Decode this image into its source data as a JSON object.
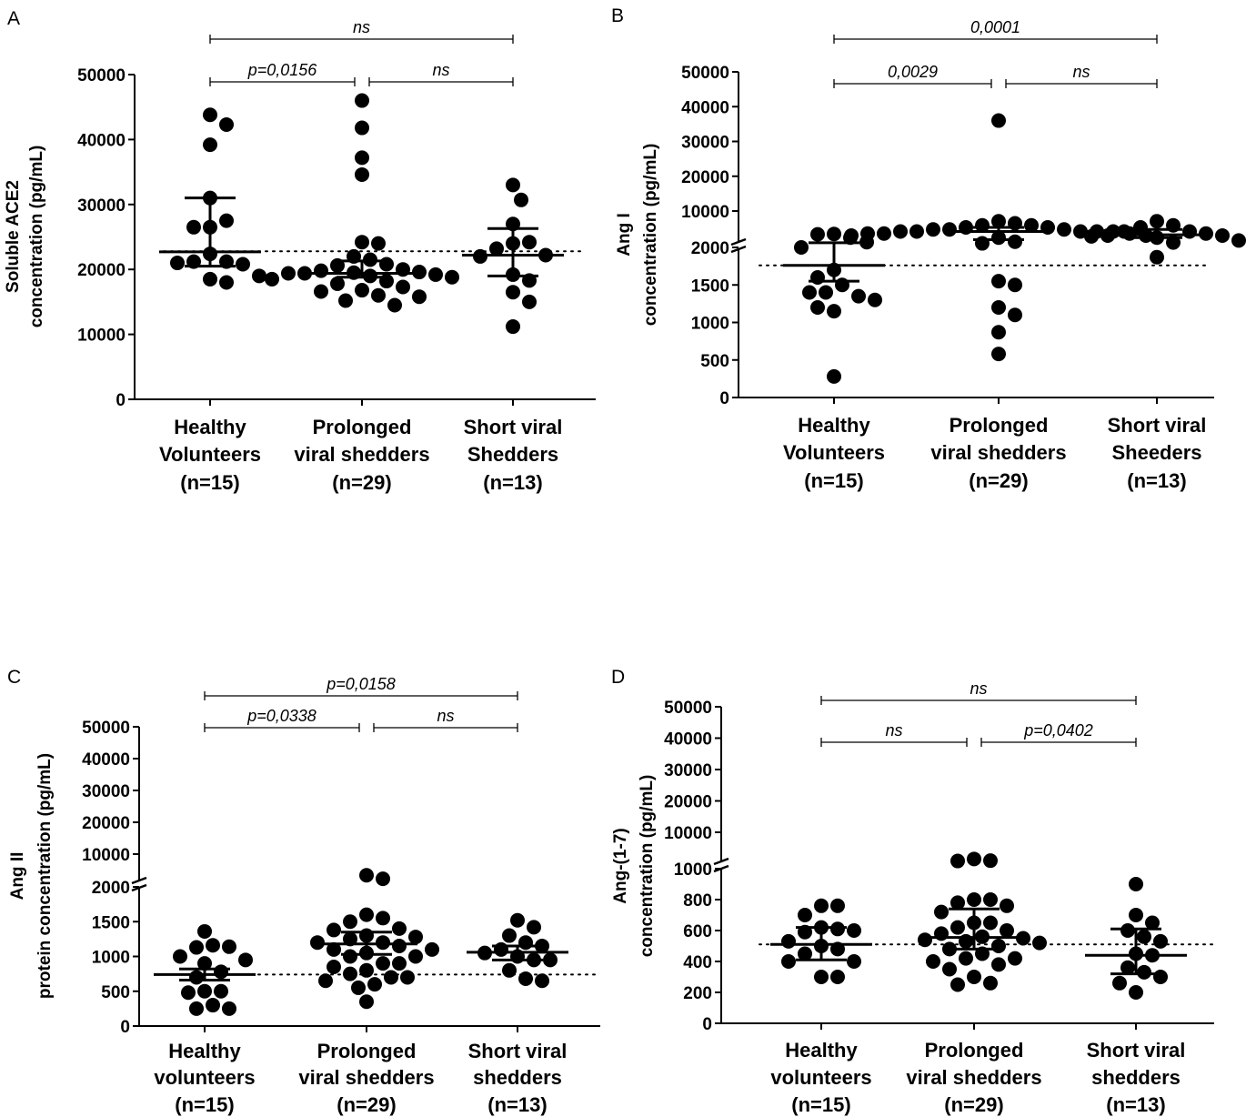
{
  "chart_data": [
    {
      "type": "scatter",
      "panel": "A",
      "ylabel": [
        "Soluble ACE2",
        "concentration (pg/mL)"
      ],
      "ylim": [
        0,
        50000
      ],
      "yticks": [
        "0",
        "10000",
        "20000",
        "30000",
        "40000",
        "50000"
      ],
      "categories": [
        {
          "lines": [
            "Healthy",
            "Volunteers",
            "(n=15)"
          ]
        },
        {
          "lines": [
            "Prolonged",
            "viral shedders",
            "(n=29)"
          ]
        },
        {
          "lines": [
            "Short viral",
            "Shedders",
            "(n=13)"
          ]
        }
      ],
      "reference_line": 22800,
      "series": [
        {
          "name": "Healthy Volunteers",
          "median": 22700,
          "q1": 20500,
          "q3": 31000,
          "values": [
            43800,
            42300,
            39200,
            31000,
            26500,
            27500,
            26500,
            22400,
            21200,
            21200,
            20800,
            21000,
            18500,
            18000,
            19000
          ]
        },
        {
          "name": "Prolonged viral shedders",
          "median": 19400,
          "q1": 18800,
          "q3": 21300,
          "values": [
            46000,
            41800,
            37200,
            34600,
            24200,
            24000,
            22000,
            21500,
            20800,
            20600,
            20000,
            19800,
            19500,
            19600,
            19400,
            19200,
            19400,
            19000,
            18800,
            18500,
            18200,
            17800,
            17300,
            16800,
            16600,
            16000,
            15800,
            15200,
            14500
          ]
        },
        {
          "name": "Short viral Shedders",
          "median": 22200,
          "q1": 19000,
          "q3": 26300,
          "values": [
            33000,
            30700,
            27000,
            24000,
            24200,
            23200,
            22200,
            22000,
            19200,
            18300,
            16500,
            15000,
            11200
          ]
        }
      ],
      "comparisons": [
        {
          "from": 0,
          "to": 1,
          "label": "p=0,0156",
          "level": 1
        },
        {
          "from": 1,
          "to": 2,
          "label": "ns",
          "level": 1
        },
        {
          "from": 0,
          "to": 2,
          "label": "ns",
          "level": 2
        }
      ]
    },
    {
      "type": "scatter",
      "panel": "B",
      "ylabel": [
        "Ang I",
        "concentration (pg/mL)"
      ],
      "ylim": [
        0,
        50000
      ],
      "axis_break": 2000,
      "yticks": [
        "0",
        "500",
        "1000",
        "1500",
        "2000",
        "10000",
        "20000",
        "30000",
        "40000",
        "50000"
      ],
      "categories": [
        {
          "lines": [
            "Healthy",
            "Volunteers",
            "(n=15)"
          ]
        },
        {
          "lines": [
            "Prolonged",
            "viral shedders",
            "(n=29)"
          ]
        },
        {
          "lines": [
            "Short viral",
            "Sheeders",
            "(n=13)"
          ]
        }
      ],
      "reference_line": 1760,
      "series": [
        {
          "name": "Healthy Volunteers",
          "median": 1760,
          "q1": 1550,
          "q3": 2250,
          "values": [
            4400,
            3500,
            4300,
            2400,
            2000,
            1700,
            1500,
            1400,
            1600,
            1350,
            1400,
            1300,
            1150,
            1200,
            280
          ]
        },
        {
          "name": "Prolonged viral shedders",
          "median": 5000,
          "q1": 3000,
          "q3": 6000,
          "values": [
            36000,
            7500,
            7000,
            6500,
            6500,
            6000,
            6000,
            5500,
            5500,
            5500,
            5000,
            5000,
            5000,
            5000,
            5000,
            4500,
            4500,
            4500,
            4000,
            4000,
            3500,
            2500,
            2100,
            1550,
            1500,
            1200,
            1100,
            870,
            580
          ]
        },
        {
          "name": "Short viral Sheeders",
          "median": 4200,
          "q1": 3500,
          "q3": 5500,
          "values": [
            7500,
            6500,
            6000,
            5000,
            5000,
            4500,
            4000,
            4000,
            3800,
            3500,
            2800,
            2300,
            1870
          ]
        }
      ],
      "comparisons": [
        {
          "from": 0,
          "to": 1,
          "label": "0,0029",
          "level": 1
        },
        {
          "from": 1,
          "to": 2,
          "label": "ns",
          "level": 1
        },
        {
          "from": 0,
          "to": 2,
          "label": "0,0001",
          "level": 2
        }
      ]
    },
    {
      "type": "scatter",
      "panel": "C",
      "ylabel": [
        "Ang II",
        "protein concentration (pg/mL)"
      ],
      "ylim": [
        0,
        50000
      ],
      "axis_break": 2000,
      "yticks": [
        "0",
        "500",
        "1000",
        "1500",
        "2000",
        "10000",
        "20000",
        "30000",
        "40000",
        "50000"
      ],
      "categories": [
        {
          "lines": [
            "Healthy",
            "volunteers",
            "(n=15)"
          ]
        },
        {
          "lines": [
            "Prolonged",
            "viral shedders",
            "(n=29)"
          ]
        },
        {
          "lines": [
            "Short viral",
            "shedders",
            "(n=13)"
          ]
        }
      ],
      "reference_line": 740,
      "series": [
        {
          "name": "Healthy volunteers",
          "median": 740,
          "q1": 660,
          "q3": 820,
          "values": [
            1360,
            1160,
            1130,
            1140,
            1000,
            950,
            900,
            780,
            700,
            500,
            500,
            480,
            300,
            250,
            250
          ]
        },
        {
          "name": "Prolonged viral shedders",
          "median": 1180,
          "q1": 1030,
          "q3": 1350,
          "values": [
            4000,
            3000,
            1600,
            1550,
            1500,
            1400,
            1380,
            1300,
            1200,
            1250,
            1280,
            1200,
            1150,
            1100,
            1100,
            1050,
            1000,
            1000,
            900,
            900,
            850,
            800,
            750,
            700,
            700,
            650,
            600,
            550,
            350
          ]
        },
        {
          "name": "Short viral shedders",
          "median": 1060,
          "q1": 950,
          "q3": 1150,
          "values": [
            1520,
            1420,
            1300,
            1200,
            1150,
            1100,
            1050,
            1000,
            950,
            950,
            800,
            680,
            650
          ]
        }
      ],
      "comparisons": [
        {
          "from": 0,
          "to": 1,
          "label": "p=0,0338",
          "level": 1
        },
        {
          "from": 1,
          "to": 2,
          "label": "ns",
          "level": 1
        },
        {
          "from": 0,
          "to": 2,
          "label": "p=0,0158",
          "level": 2
        }
      ]
    },
    {
      "type": "scatter",
      "panel": "D",
      "ylabel": [
        "Ang-(1-7)",
        "concentration (pg/mL)"
      ],
      "ylim": [
        0,
        50000
      ],
      "axis_break": 1000,
      "yticks": [
        "0",
        "200",
        "400",
        "600",
        "800",
        "1000",
        "10000",
        "20000",
        "30000",
        "40000",
        "50000"
      ],
      "categories": [
        {
          "lines": [
            "Healthy",
            "volunteers",
            "(n=15)"
          ]
        },
        {
          "lines": [
            "Prolonged",
            "viral shedders",
            "(n=29)"
          ]
        },
        {
          "lines": [
            "Short viral",
            "shedders",
            "(n=13)"
          ]
        }
      ],
      "reference_line": 510,
      "series": [
        {
          "name": "Healthy volunteers",
          "median": 510,
          "q1": 410,
          "q3": 620,
          "values": [
            760,
            760,
            700,
            620,
            610,
            590,
            600,
            530,
            500,
            480,
            450,
            400,
            400,
            300,
            300
          ]
        },
        {
          "name": "Prolonged viral shedders",
          "median": 555,
          "q1": 480,
          "q3": 740,
          "values": [
            2000,
            1500,
            1400,
            800,
            800,
            780,
            760,
            720,
            650,
            650,
            620,
            600,
            580,
            560,
            550,
            540,
            530,
            520,
            500,
            480,
            450,
            420,
            420,
            400,
            380,
            350,
            300,
            260,
            250
          ]
        },
        {
          "name": "Short viral shedders",
          "median": 440,
          "q1": 320,
          "q3": 610,
          "values": [
            900,
            700,
            650,
            600,
            560,
            530,
            450,
            440,
            360,
            330,
            300,
            260,
            200
          ]
        }
      ],
      "comparisons": [
        {
          "from": 0,
          "to": 1,
          "label": "ns",
          "level": 1
        },
        {
          "from": 1,
          "to": 2,
          "label": "p=0,0402",
          "level": 1
        },
        {
          "from": 0,
          "to": 2,
          "label": "ns",
          "level": 2
        }
      ]
    }
  ]
}
